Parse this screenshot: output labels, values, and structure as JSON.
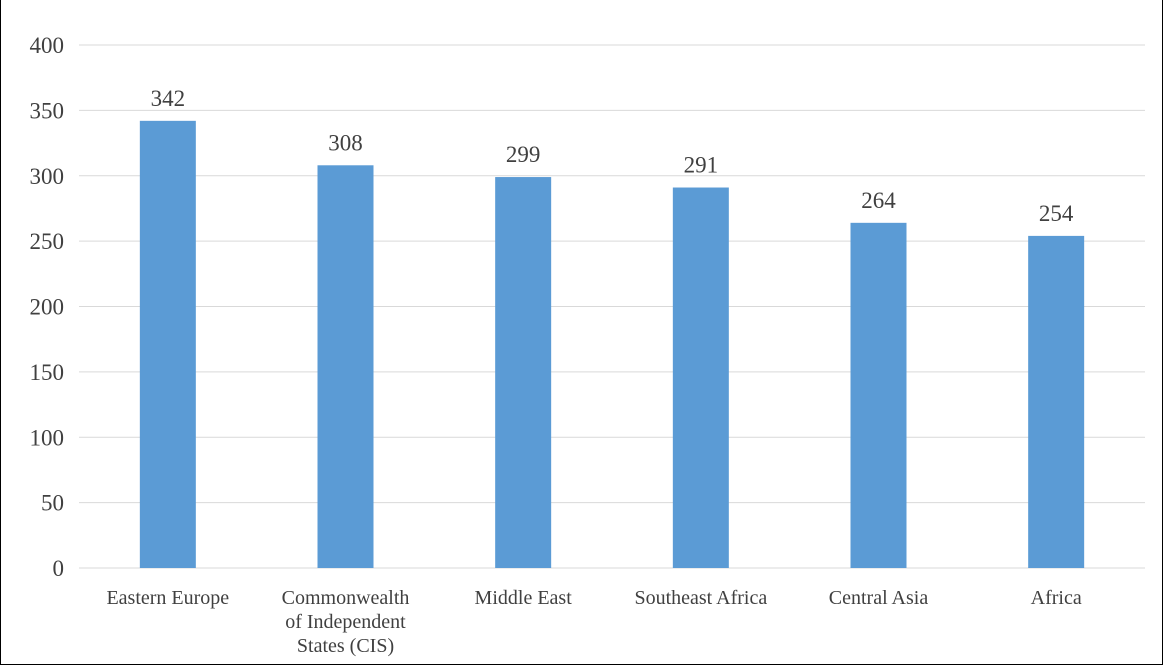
{
  "chart_data": {
    "type": "bar",
    "title": "",
    "xlabel": "",
    "ylabel": "",
    "categories": [
      "Eastern Europe",
      "Commonwealth of Independent States (CIS)",
      "Middle East",
      "Southeast Africa",
      "Central Asia",
      "Africa"
    ],
    "category_lines": [
      [
        "Eastern Europe"
      ],
      [
        "Commonwealth",
        "of Independent",
        "States (CIS)"
      ],
      [
        "Middle East"
      ],
      [
        "Southeast Africa"
      ],
      [
        "Central Asia"
      ],
      [
        "Africa"
      ]
    ],
    "values": [
      342,
      308,
      299,
      291,
      264,
      254
    ],
    "data_labels": [
      "342",
      "308",
      "299",
      "291",
      "264",
      "254"
    ],
    "ylim": [
      0,
      400
    ],
    "yticks": [
      0,
      50,
      100,
      150,
      200,
      250,
      300,
      350,
      400
    ],
    "ytick_labels": [
      "0",
      "50",
      "100",
      "150",
      "200",
      "250",
      "300",
      "350",
      "400"
    ],
    "grid": true,
    "legend": "none",
    "bar_color": "#5b9bd5",
    "grid_color": "#d9d9d9"
  }
}
